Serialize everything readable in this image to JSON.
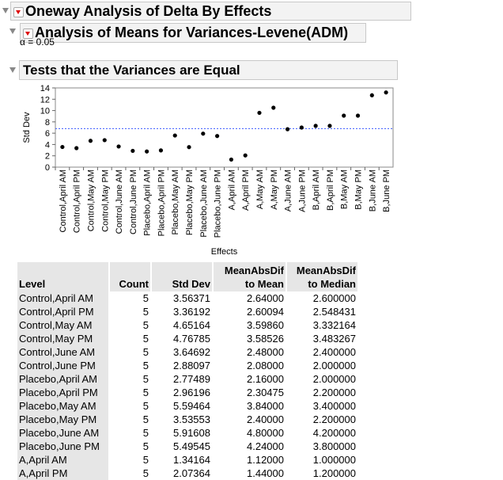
{
  "report": {
    "title": "Oneway Analysis of Delta By Effects",
    "anom_title": "Analysis of Means for Variances-Levene(ADM)",
    "alpha_label": "α = 0.05",
    "tests_title": "Tests that the Variances are Equal"
  },
  "colors": {
    "reference_line": "#3b5bff",
    "points": "#000000",
    "header_bg": "#f3f3f3",
    "menu_arrow": "#dd0000"
  },
  "icons": {
    "disclosure": "disclosure-triangle-icon",
    "menu": "red-triangle-menu-icon"
  },
  "chart_data": {
    "type": "scatter",
    "xlabel": "Effects",
    "ylabel": "Std Dev",
    "ylim": [
      0,
      14
    ],
    "yticks": [
      0,
      2,
      4,
      6,
      8,
      10,
      12,
      14
    ],
    "reference_line": 6.8,
    "grid": false,
    "categories": [
      "Control,April AM",
      "Control,April PM",
      "Control,May AM",
      "Control,May PM",
      "Control,June AM",
      "Control,June PM",
      "Placebo,April AM",
      "Placebo,April PM",
      "Placebo,May AM",
      "Placebo,May PM",
      "Placebo,June AM",
      "Placebo,June PM",
      "A,April AM",
      "A,April PM",
      "A,May AM",
      "A,May PM",
      "A,June AM",
      "A,June PM",
      "B,April AM",
      "B,April PM",
      "B,May AM",
      "B,May PM",
      "B,June AM",
      "B,June PM"
    ],
    "values": [
      3.56,
      3.36,
      4.65,
      4.77,
      3.65,
      2.88,
      2.77,
      2.96,
      5.59,
      3.54,
      5.92,
      5.5,
      1.34,
      2.07,
      9.6,
      10.5,
      6.7,
      7.0,
      7.3,
      7.3,
      9.1,
      9.1,
      12.7,
      13.2
    ]
  },
  "table": {
    "headers": [
      {
        "line1": "",
        "line2": "Level"
      },
      {
        "line1": "",
        "line2": "Count"
      },
      {
        "line1": "",
        "line2": "Std Dev"
      },
      {
        "line1": "MeanAbsDif",
        "line2": "to Mean"
      },
      {
        "line1": "MeanAbsDif",
        "line2": "to Median"
      }
    ],
    "rows": [
      [
        "Control,April AM",
        "5",
        "3.56371",
        "2.64000",
        "2.600000"
      ],
      [
        "Control,April PM",
        "5",
        "3.36192",
        "2.60094",
        "2.548431"
      ],
      [
        "Control,May AM",
        "5",
        "4.65164",
        "3.59860",
        "3.332164"
      ],
      [
        "Control,May PM",
        "5",
        "4.76785",
        "3.58526",
        "3.483267"
      ],
      [
        "Control,June AM",
        "5",
        "3.64692",
        "2.48000",
        "2.400000"
      ],
      [
        "Control,June PM",
        "5",
        "2.88097",
        "2.08000",
        "2.000000"
      ],
      [
        "Placebo,April AM",
        "5",
        "2.77489",
        "2.16000",
        "2.000000"
      ],
      [
        "Placebo,April PM",
        "5",
        "2.96196",
        "2.30475",
        "2.200000"
      ],
      [
        "Placebo,May AM",
        "5",
        "5.59464",
        "3.84000",
        "3.400000"
      ],
      [
        "Placebo,May PM",
        "5",
        "3.53553",
        "2.40000",
        "2.200000"
      ],
      [
        "Placebo,June AM",
        "5",
        "5.91608",
        "4.80000",
        "4.200000"
      ],
      [
        "Placebo,June PM",
        "5",
        "5.49545",
        "4.24000",
        "3.800000"
      ],
      [
        "A,April AM",
        "5",
        "1.34164",
        "1.12000",
        "1.000000"
      ],
      [
        "A,April PM",
        "5",
        "2.07364",
        "1.44000",
        "1.200000"
      ]
    ]
  }
}
